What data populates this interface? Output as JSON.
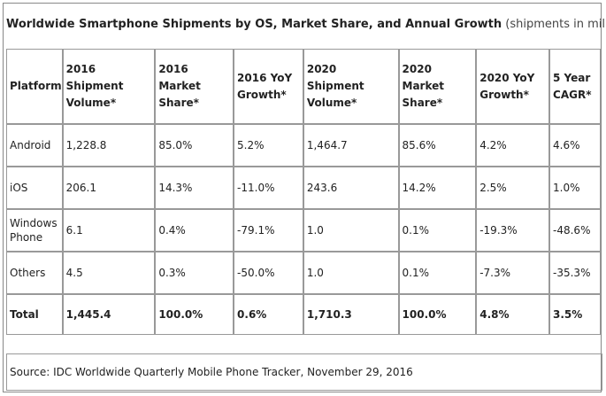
{
  "title": {
    "main": "Worldwide Smartphone Shipments by OS, Market Share, and Annual Growth",
    "sub": "(shipments in millions)"
  },
  "table": {
    "headers": [
      {
        "line1": "Platform",
        "line2": "",
        "line3": ""
      },
      {
        "line1": "2016",
        "line2": "Shipment",
        "line3": "Volume*"
      },
      {
        "line1": "2016",
        "line2": "Market",
        "line3": "Share*"
      },
      {
        "line1": "2016 YoY",
        "line2": "Growth*",
        "line3": ""
      },
      {
        "line1": "2020",
        "line2": "Shipment",
        "line3": "Volume*"
      },
      {
        "line1": "2020",
        "line2": "Market",
        "line3": "Share*"
      },
      {
        "line1": "2020 YoY",
        "line2": "Growth*",
        "line3": ""
      },
      {
        "line1": "5 Year",
        "line2": "CAGR*",
        "line3": ""
      }
    ],
    "rows": [
      {
        "platform_line1": "Android",
        "platform_line2": "",
        "cells": [
          "1,228.8",
          "85.0%",
          "5.2%",
          "1,464.7",
          "85.6%",
          "4.2%",
          "4.6%"
        ]
      },
      {
        "platform_line1": "iOS",
        "platform_line2": "",
        "cells": [
          "206.1",
          "14.3%",
          "-11.0%",
          "243.6",
          "14.2%",
          "2.5%",
          "1.0%"
        ]
      },
      {
        "platform_line1": "Windows",
        "platform_line2": "Phone",
        "cells": [
          "6.1",
          "0.4%",
          "-79.1%",
          "1.0",
          "0.1%",
          "-19.3%",
          "-48.6%"
        ]
      },
      {
        "platform_line1": "Others",
        "platform_line2": "",
        "cells": [
          "4.5",
          "0.3%",
          "-50.0%",
          "1.0",
          "0.1%",
          "-7.3%",
          "-35.3%"
        ]
      }
    ],
    "total": {
      "label": "Total",
      "cells": [
        "1,445.4",
        "100.0%",
        "0.6%",
        "1,710.3",
        "100.0%",
        "4.8%",
        "3.5%"
      ]
    }
  },
  "source": "Source: IDC Worldwide Quarterly Mobile Phone Tracker, November 29, 2016"
}
